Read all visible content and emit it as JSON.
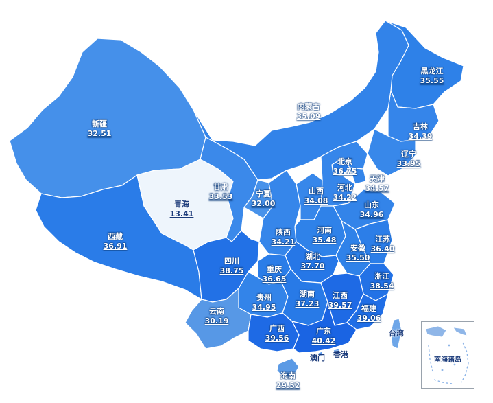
{
  "provinces": [
    {
      "name": "黑龙江",
      "value": "35.55",
      "color": "#2e81e8"
    },
    {
      "name": "吉林",
      "value": "34.39",
      "color": "#3585ea"
    },
    {
      "name": "辽宁",
      "value": "33.95",
      "color": "#3888ea"
    },
    {
      "name": "内蒙古",
      "value": "35.09",
      "color": "#3283e9"
    },
    {
      "name": "新疆",
      "value": "32.51",
      "color": "#4590ea"
    },
    {
      "name": "西藏",
      "value": "36.91",
      "color": "#2a7ce8"
    },
    {
      "name": "青海",
      "value": "13.41",
      "color": "#eef5fc"
    },
    {
      "name": "甘肃",
      "value": "33.53",
      "color": "#3b89ea"
    },
    {
      "name": "宁夏",
      "value": "32.00",
      "color": "#4892ea"
    },
    {
      "name": "北京",
      "value": "36.75",
      "color": "#2b7de8"
    },
    {
      "name": "天津",
      "value": "34.57",
      "color": "#3485e9"
    },
    {
      "name": "河北",
      "value": "34.22",
      "color": "#3686ea"
    },
    {
      "name": "山西",
      "value": "34.08",
      "color": "#3787ea"
    },
    {
      "name": "山东",
      "value": "34.96",
      "color": "#3384e9"
    },
    {
      "name": "陕西",
      "value": "34.21",
      "color": "#3686ea"
    },
    {
      "name": "河南",
      "value": "35.48",
      "color": "#2f82e9"
    },
    {
      "name": "江苏",
      "value": "36.40",
      "color": "#2c7ee8"
    },
    {
      "name": "安徽",
      "value": "35.50",
      "color": "#2f82e9"
    },
    {
      "name": "四川",
      "value": "38.75",
      "color": "#2271e6"
    },
    {
      "name": "重庆",
      "value": "36.65",
      "color": "#2b7de8"
    },
    {
      "name": "湖北",
      "value": "37.70",
      "color": "#2677e7"
    },
    {
      "name": "浙江",
      "value": "38.54",
      "color": "#2372e6"
    },
    {
      "name": "贵州",
      "value": "34.95",
      "color": "#3384e9"
    },
    {
      "name": "湖南",
      "value": "37.23",
      "color": "#287ae7"
    },
    {
      "name": "江西",
      "value": "39.57",
      "color": "#1e6ae5"
    },
    {
      "name": "福建",
      "value": "39.06",
      "color": "#206ee6"
    },
    {
      "name": "云南",
      "value": "30.19",
      "color": "#5798e6"
    },
    {
      "name": "广西",
      "value": "39.56",
      "color": "#1e6ae5"
    },
    {
      "name": "广东",
      "value": "40.42",
      "color": "#1a64e3"
    },
    {
      "name": "海南",
      "value": "29.52",
      "color": "#5b9ae5"
    }
  ],
  "unlabeled_regions": [
    {
      "name": "台湾",
      "color": "#6ea6e8"
    },
    {
      "name": "香港",
      "color": "#3a86e8"
    },
    {
      "name": "澳门",
      "color": "#3a86e8"
    }
  ],
  "inset": {
    "label": "南海诸岛"
  }
}
